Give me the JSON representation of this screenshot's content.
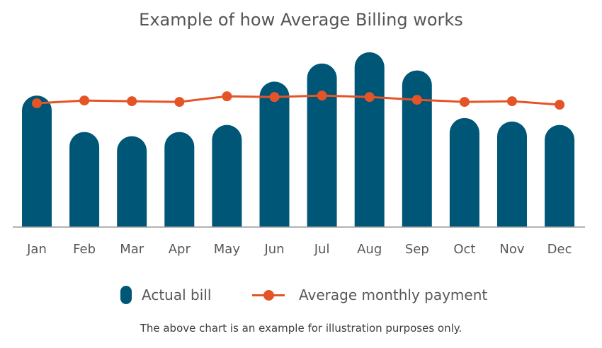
{
  "chart_data": {
    "type": "bar",
    "title": "Example of how Average Billing works",
    "categories": [
      "Jan",
      "Feb",
      "Mar",
      "Apr",
      "May",
      "Jun",
      "Jul",
      "Aug",
      "Sep",
      "Oct",
      "Nov",
      "Dec"
    ],
    "series": [
      {
        "name": "Actual bill",
        "type": "bar",
        "color": "#005677",
        "values": [
          188,
          136,
          130,
          136,
          146,
          208,
          234,
          250,
          224,
          156,
          151,
          146
        ]
      },
      {
        "name": "Average monthly payment",
        "type": "line",
        "color": "#e45427",
        "values": [
          177,
          181,
          180,
          179,
          187,
          186,
          188,
          186,
          182,
          179,
          180,
          175
        ]
      }
    ],
    "ylim": [
      0,
      260
    ],
    "grid": false,
    "legend_position": "bottom",
    "footnote": "The above chart is an example for illustration purposes only."
  }
}
